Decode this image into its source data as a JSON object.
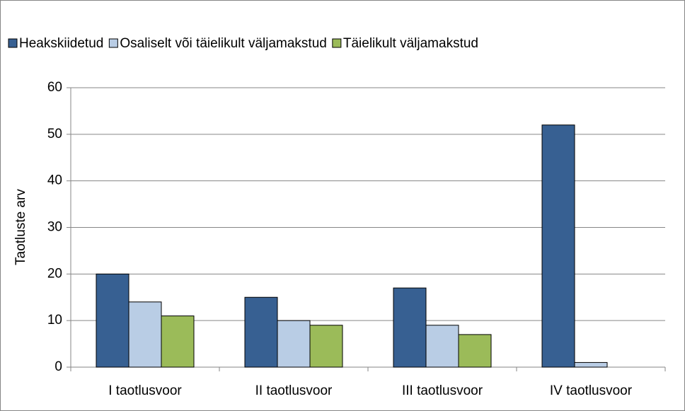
{
  "chart_data": {
    "type": "bar",
    "categories": [
      "I taotlusvoor",
      "II taotlusvoor",
      "III taotlusvoor",
      "IV taotlusvoor"
    ],
    "series": [
      {
        "name": "Heakskiidetud",
        "color": "#376092",
        "values": [
          20,
          15,
          17,
          52
        ]
      },
      {
        "name": "Osaliselt või täielikult väljamakstud",
        "color": "#b9cde5",
        "values": [
          14,
          10,
          9,
          1
        ]
      },
      {
        "name": "Täielikult väljamakstud",
        "color": "#9bbb59",
        "values": [
          11,
          9,
          7,
          0
        ]
      }
    ],
    "ylabel": "Taotluste arv",
    "ylim": [
      0,
      60
    ],
    "yticks": [
      0,
      10,
      20,
      30,
      40,
      50,
      60
    ],
    "grid": true,
    "legend": "top"
  }
}
